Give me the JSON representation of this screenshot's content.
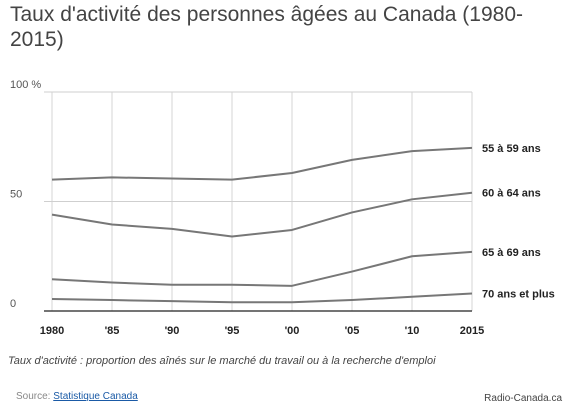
{
  "header": {
    "title": "Taux d'activité des personnes âgées au Canada (1980-2015)"
  },
  "chart_data": {
    "type": "line",
    "title": "Taux d'activité des personnes âgées au Canada (1980-2015)",
    "x": [
      1980,
      1985,
      1990,
      1995,
      2000,
      2005,
      2010,
      2015
    ],
    "x_tick_labels": [
      "1980",
      "'85",
      "'90",
      "'95",
      "'00",
      "'05",
      "'10",
      "2015"
    ],
    "y_tick_labels": [
      "100 %",
      "50",
      "0"
    ],
    "y_ticks": [
      100,
      50,
      0
    ],
    "ylim": [
      0,
      100
    ],
    "grid": true,
    "series": [
      {
        "name": "55 à 59 ans",
        "values": [
          60,
          61,
          60.5,
          60,
          63,
          69,
          73,
          74.5
        ]
      },
      {
        "name": "60 à 64 ans",
        "values": [
          44,
          39.5,
          37.5,
          34,
          37,
          45,
          51,
          54
        ]
      },
      {
        "name": "65 à 69 ans",
        "values": [
          14.5,
          13,
          12,
          12,
          11.5,
          18,
          25,
          27
        ]
      },
      {
        "name": "70 ans et plus",
        "values": [
          5.5,
          5,
          4.5,
          4,
          4,
          5,
          6.5,
          8
        ]
      }
    ],
    "line_color": "#777777"
  },
  "footnote": "Taux d'activité : proportion des aînés sur le marché du travail ou à la recherche d'emploi",
  "source": {
    "label": "Source:",
    "link_text": "Statistique Canada"
  },
  "credit": "Radio-Canada.ca"
}
